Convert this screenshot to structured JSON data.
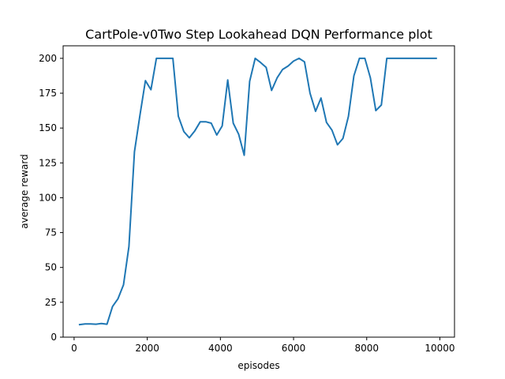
{
  "chart_data": {
    "type": "line",
    "title": "CartPole-v0Two Step Lookahead DQN Performance plot",
    "xlabel": "episodes",
    "ylabel": "average reward",
    "xlim": [
      -300,
      10400
    ],
    "ylim": [
      0,
      209
    ],
    "xticks": [
      0,
      2000,
      4000,
      6000,
      8000,
      10000
    ],
    "yticks": [
      0,
      25,
      50,
      75,
      100,
      125,
      150,
      175,
      200
    ],
    "grid": false,
    "legend": "none",
    "line_color": "#1f77b4",
    "series": [
      {
        "x": [
          150,
          300,
          450,
          600,
          750,
          900,
          1050,
          1200,
          1350,
          1500,
          1650,
          1800,
          1950,
          2100,
          2250,
          2400,
          2550,
          2700,
          2850,
          3000,
          3150,
          3300,
          3450,
          3600,
          3750,
          3900,
          4050,
          4200,
          4350,
          4500,
          4650,
          4800,
          4950,
          5100,
          5250,
          5400,
          5550,
          5700,
          5850,
          6000,
          6150,
          6300,
          6450,
          6600,
          6750,
          6900,
          7050,
          7200,
          7350,
          7500,
          7650,
          7800,
          7950,
          8100,
          8250,
          8400,
          8550,
          8700,
          8850,
          9000,
          9150,
          9300,
          9450,
          9600,
          9750,
          9900
        ],
        "values": [
          9,
          9.5,
          9.5,
          9.3,
          9.8,
          9.3,
          22,
          27.5,
          37.5,
          65,
          133,
          159,
          184,
          177.5,
          200,
          200,
          200,
          200,
          158.5,
          147.5,
          143,
          148,
          154.5,
          154.5,
          153.5,
          145,
          151.5,
          184.5,
          153.5,
          145.5,
          130.5,
          183.5,
          200,
          197,
          193.5,
          177,
          186,
          192,
          194.5,
          198,
          200,
          197.5,
          175,
          162,
          171.5,
          154,
          148.5,
          138,
          142.5,
          158.5,
          187.5,
          200,
          200,
          186,
          162.5,
          166.5,
          200,
          200,
          200,
          200,
          200,
          200,
          200,
          200,
          200,
          200
        ]
      }
    ]
  }
}
